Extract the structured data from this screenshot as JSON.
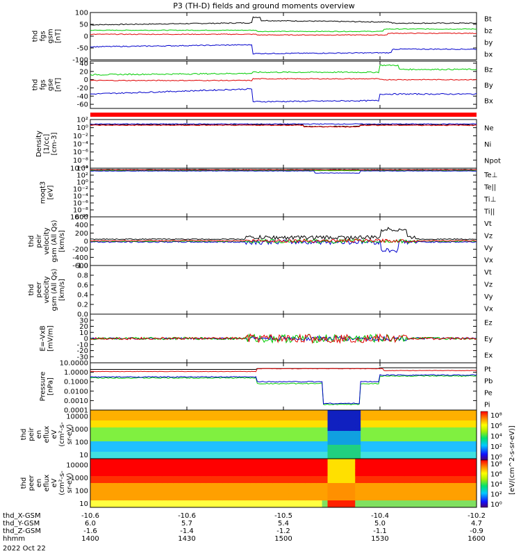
{
  "title": "P3 (TH-D) fields and ground moments overview",
  "panels": [
    {
      "id": "fgs_gsm",
      "ylabel": [
        "thd",
        "fgs",
        "gsm",
        "[nT]"
      ],
      "scale": "linear",
      "ylim": [
        -100,
        100
      ],
      "ticks": [
        "100",
        "50",
        "0",
        "-50",
        "-100"
      ],
      "legend": [
        {
          "text": "Bt",
          "color": "#000000"
        },
        {
          "text": "bz",
          "color": "#e00000"
        },
        {
          "text": "by",
          "color": "#00cc00"
        },
        {
          "text": "bx",
          "color": "#0000cc"
        }
      ]
    },
    {
      "id": "fgs_gse",
      "ylabel": [
        "thd",
        "fgs",
        "gse",
        "[nT]"
      ],
      "scale": "linear",
      "ylim": [
        -70,
        45
      ],
      "ticks": [
        "40",
        "20",
        "0",
        "-20",
        "-40",
        "-60"
      ],
      "legend": [
        {
          "text": "Bz",
          "color": "#e00000"
        },
        {
          "text": "By",
          "color": "#00cc00"
        },
        {
          "text": "Bx",
          "color": "#0000cc"
        }
      ]
    },
    {
      "id": "density",
      "ylabel": [
        "Density",
        "[1/cc]",
        "[cm-3]"
      ],
      "scale": "log",
      "ylim": [
        1e-10,
        100
      ],
      "ticks": [
        "10²",
        "10⁰",
        "10⁻²",
        "10⁻⁴",
        "10⁻⁶",
        "10⁻⁸",
        "10⁻¹⁰"
      ],
      "legend": [
        {
          "text": "Ne",
          "color": "#e00000"
        },
        {
          "text": "Ni",
          "color": "#000000"
        },
        {
          "text": "Npot",
          "color": "#0000cc"
        }
      ]
    },
    {
      "id": "temp",
      "ylabel": [
        "moqt3",
        "[eV]"
      ],
      "scale": "log",
      "ylim": [
        1e-10,
        10000
      ],
      "ticks": [
        "10⁴",
        "10²",
        "10⁰",
        "10⁻²",
        "10⁻⁴",
        "10⁻⁶",
        "10⁻⁸",
        "10⁻¹⁰"
      ],
      "legend": [
        {
          "text": "Te⊥",
          "color": "#e00000"
        },
        {
          "text": "Te||",
          "color": "#000000"
        },
        {
          "text": "Ti⊥",
          "color": "#00cc00"
        },
        {
          "text": "Ti||",
          "color": "#00cc00"
        }
      ]
    },
    {
      "id": "peir_vel",
      "ylabel": [
        "thd",
        "peir",
        "velocity",
        "gsm (All Qs)",
        "[km/s]"
      ],
      "scale": "linear",
      "ylim": [
        -600,
        600
      ],
      "ticks": [
        "600",
        "400",
        "200",
        "0",
        "-200",
        "-400",
        "-600"
      ],
      "legend": [
        {
          "text": "Vt",
          "color": "#000000"
        },
        {
          "text": "Vz",
          "color": "#e00000"
        },
        {
          "text": "Vy",
          "color": "#00cc00"
        },
        {
          "text": "Vx",
          "color": "#0000cc"
        }
      ]
    },
    {
      "id": "peer_vel",
      "ylabel": [
        "thd",
        "peer",
        "velocity",
        "gsm (All Qs)",
        "[km/s]"
      ],
      "scale": "linear",
      "ylim": [
        0,
        1
      ],
      "ticks": [
        "1.0",
        "0.8",
        "0.6",
        "0.4",
        "0.2",
        "0.0"
      ],
      "legend": [
        {
          "text": "Vt",
          "color": "#000000"
        },
        {
          "text": "Vz",
          "color": "#e00000"
        },
        {
          "text": "Vy",
          "color": "#00cc00"
        },
        {
          "text": "Vx",
          "color": "#0000cc"
        }
      ]
    },
    {
      "id": "efield",
      "ylabel": [
        "E=-VxB",
        "[mV/m]"
      ],
      "scale": "linear",
      "ylim": [
        -40,
        40
      ],
      "ticks": [
        "30",
        "20",
        "10",
        "0",
        "-10",
        "-20",
        "-30"
      ],
      "legend": [
        {
          "text": "Ez",
          "color": "#e00000"
        },
        {
          "text": "Ey",
          "color": "#00cc00"
        },
        {
          "text": "Ex",
          "color": "#0000cc"
        }
      ]
    },
    {
      "id": "pressure",
      "ylabel": [
        "Pressure",
        "[nPa]"
      ],
      "scale": "log",
      "ylim": [
        0.0001,
        10
      ],
      "ticks": [
        "10.0000",
        "1.0000",
        "0.1000",
        "0.0100",
        "0.0010",
        "0.0001"
      ],
      "legend": [
        {
          "text": "Pt",
          "color": "#000000"
        },
        {
          "text": "Pb",
          "color": "#e00000"
        },
        {
          "text": "Pe",
          "color": "#00cc00"
        },
        {
          "text": "Pi",
          "color": "#0000cc"
        }
      ]
    },
    {
      "id": "peir_en",
      "ylabel": [
        "thd",
        "peir",
        "en",
        "eflux",
        "eV",
        "(cm²-s-",
        "sr-eV)"
      ],
      "scale": "log",
      "ylim": [
        5,
        30000
      ],
      "ticks": [
        "10000",
        "1000",
        "100",
        "10"
      ]
    },
    {
      "id": "peer_en",
      "ylabel": [
        "thd",
        "peer",
        "en",
        "eflux",
        "eV",
        "(cm²-s-",
        "sr-eV)"
      ],
      "scale": "log",
      "ylim": [
        5,
        30000
      ],
      "ticks": [
        "10000",
        "1000",
        "100",
        "10"
      ]
    }
  ],
  "colorbar": {
    "label": "[eV/(cm^2-s-sr-eV)]",
    "top_ticks": [
      "10⁸",
      "10⁶",
      "10⁴",
      "10²",
      "10⁰"
    ],
    "bottom_ticks": [
      "10⁸",
      "10⁶",
      "10⁴",
      "10²",
      "10⁰"
    ]
  },
  "xaxis": {
    "rows": [
      {
        "label": "thd_X-GSM",
        "values": [
          "-10.6",
          "-10.6",
          "-10.5",
          "-10.4",
          "-10.2"
        ]
      },
      {
        "label": "thd_Y-GSM",
        "values": [
          "6.0",
          "5.7",
          "5.4",
          "5.0",
          "4.7"
        ]
      },
      {
        "label": "thd_Z-GSM",
        "values": [
          "-1.6",
          "-1.4",
          "-1.2",
          "-1.1",
          "-0.9"
        ]
      },
      {
        "label": "hhmm",
        "values": [
          "1400",
          "1430",
          "1500",
          "1530",
          "1600"
        ]
      }
    ],
    "date": "2022 Oct 22"
  },
  "chart_data": {
    "type": "line",
    "title": "P3 (TH-D) fields and ground moments overview",
    "x_time_hhmm": [
      "1400",
      "1430",
      "1500",
      "1530",
      "1600"
    ],
    "series_summary": [
      {
        "panel": "fgs_gsm",
        "name": "Bt",
        "level": "~40-70 nT, peak ~85 near 1450-1500"
      },
      {
        "panel": "fgs_gsm",
        "name": "bz",
        "level": "~0-15 nT"
      },
      {
        "panel": "fgs_gsm",
        "name": "by",
        "level": "~20-30 nT"
      },
      {
        "panel": "fgs_gsm",
        "name": "bx",
        "level": "~-40 to -80 nT"
      },
      {
        "panel": "fgs_gse",
        "name": "Bz",
        "level": "~0 nT"
      },
      {
        "panel": "fgs_gse",
        "name": "By",
        "level": "~15-25 nT, up to 40 near 1532"
      },
      {
        "panel": "fgs_gse",
        "name": "Bx",
        "level": "~-30 to -60 nT"
      },
      {
        "panel": "pressure",
        "name": "Pt",
        "level": "~1-3 nPa"
      },
      {
        "panel": "pressure",
        "name": "Pi",
        "level": "~0.3 nPa, drop to ~0.0005 during 1510-1525"
      }
    ]
  }
}
